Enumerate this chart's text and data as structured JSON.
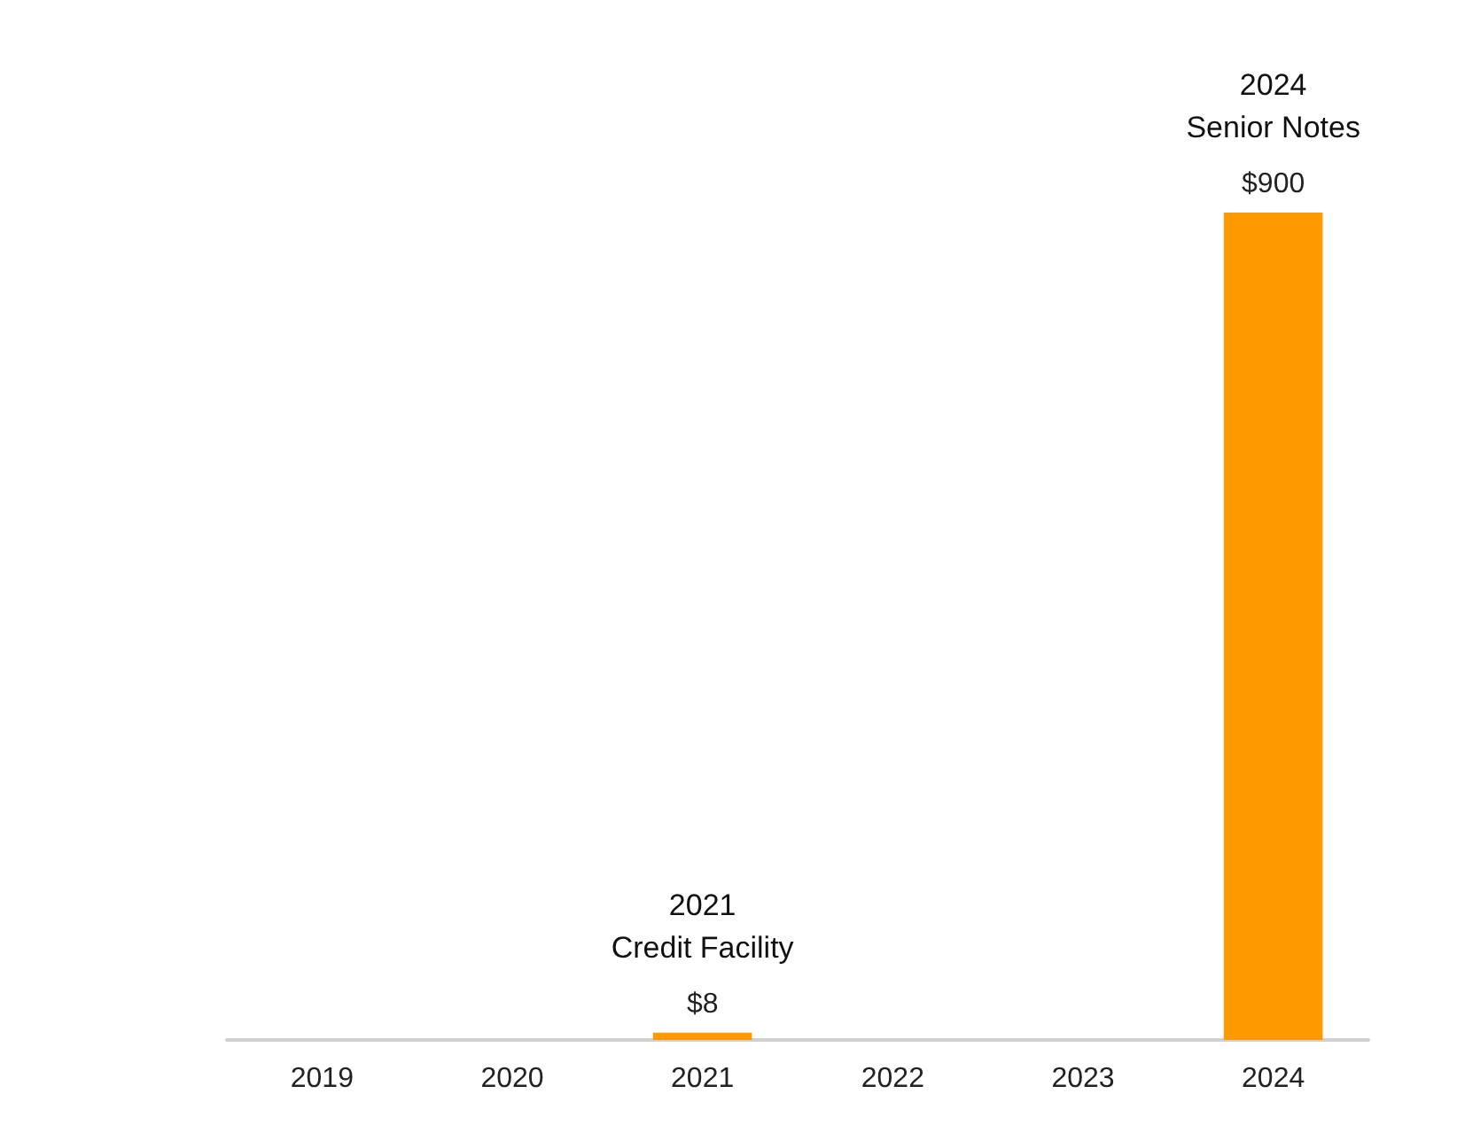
{
  "chart_data": {
    "type": "bar",
    "categories": [
      "2019",
      "2020",
      "2021",
      "2022",
      "2023",
      "2024"
    ],
    "values": [
      null,
      null,
      8,
      null,
      null,
      900
    ],
    "value_labels": [
      null,
      null,
      "$8",
      null,
      null,
      "$900"
    ],
    "color": "#ff9900",
    "annotations": [
      "2021\nCredit Facility",
      "2024\nSenior Notes"
    ]
  }
}
